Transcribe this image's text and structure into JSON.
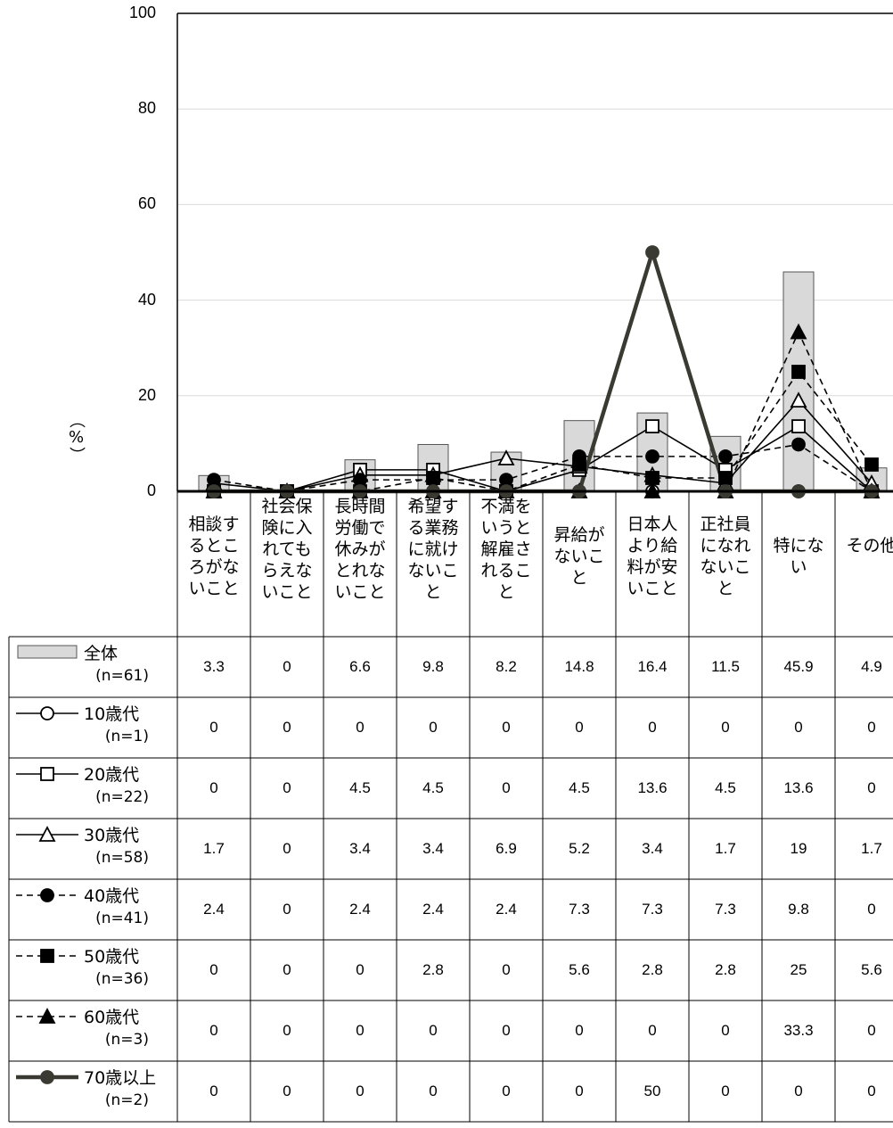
{
  "chart_data": {
    "type": "bar",
    "ylabel": "（%）",
    "ylim": [
      0,
      100
    ],
    "yticks": [
      "0",
      "20",
      "40",
      "60",
      "80",
      "100"
    ],
    "categories": [
      [
        "相談す",
        "るとこ",
        "ろがな",
        "いこと"
      ],
      [
        "社会保",
        "険に入",
        "れても",
        "らえな",
        "いこと"
      ],
      [
        "長時間",
        "労働で",
        "休みが",
        "とれな",
        "いこと"
      ],
      [
        "希望す",
        "る業務",
        "に就け",
        "ないこ",
        "と"
      ],
      [
        "不満を",
        "いうと",
        "解雇さ",
        "れるこ",
        "と"
      ],
      [
        "昇給が",
        "ないこ",
        "と"
      ],
      [
        "日本人",
        "より給",
        "料が安",
        "いこと"
      ],
      [
        "正社員",
        "になれ",
        "ないこ",
        "と"
      ],
      [
        "特にな",
        "い"
      ],
      [
        "その他"
      ]
    ],
    "series": [
      {
        "name": "全体",
        "n": "(n=61)",
        "kind": "bar",
        "color": "#d9d9d9",
        "values": [
          "3.3",
          "0",
          "6.6",
          "9.8",
          "8.2",
          "14.8",
          "16.4",
          "11.5",
          "45.9",
          "4.9"
        ]
      },
      {
        "name": "10歳代",
        "n": "(n=1)",
        "kind": "line",
        "marker": "circle-open",
        "dash": "solid",
        "color": "#000000",
        "values": [
          "0",
          "0",
          "0",
          "0",
          "0",
          "0",
          "0",
          "0",
          "0",
          "0"
        ]
      },
      {
        "name": "20歳代",
        "n": "(n=22)",
        "kind": "line",
        "marker": "square-open",
        "dash": "solid",
        "color": "#000000",
        "values": [
          "0",
          "0",
          "4.5",
          "4.5",
          "0",
          "4.5",
          "13.6",
          "4.5",
          "13.6",
          "0"
        ]
      },
      {
        "name": "30歳代",
        "n": "(n=58)",
        "kind": "line",
        "marker": "triangle-open",
        "dash": "solid",
        "color": "#000000",
        "values": [
          "1.7",
          "0",
          "3.4",
          "3.4",
          "6.9",
          "5.2",
          "3.4",
          "1.7",
          "19",
          "1.7"
        ]
      },
      {
        "name": "40歳代",
        "n": "(n=41)",
        "kind": "line",
        "marker": "circle-filled",
        "dash": "dashed",
        "color": "#000000",
        "values": [
          "2.4",
          "0",
          "2.4",
          "2.4",
          "2.4",
          "7.3",
          "7.3",
          "7.3",
          "9.8",
          "0"
        ]
      },
      {
        "name": "50歳代",
        "n": "(n=36)",
        "kind": "line",
        "marker": "square-filled",
        "dash": "dashed",
        "color": "#000000",
        "values": [
          "0",
          "0",
          "0",
          "2.8",
          "0",
          "5.6",
          "2.8",
          "2.8",
          "25",
          "5.6"
        ]
      },
      {
        "name": "60歳代",
        "n": "(n=3)",
        "kind": "line",
        "marker": "triangle-filled",
        "dash": "dashed",
        "color": "#000000",
        "values": [
          "0",
          "0",
          "0",
          "0",
          "0",
          "0",
          "0",
          "0",
          "33.3",
          "0"
        ]
      },
      {
        "name": "70歳以上",
        "n": "(n=2)",
        "kind": "line",
        "marker": "circle-filled",
        "dash": "thick",
        "color": "#3a3a32",
        "values": [
          "0",
          "0",
          "0",
          "0",
          "0",
          "0",
          "50",
          "0",
          "0",
          "0"
        ]
      }
    ]
  }
}
